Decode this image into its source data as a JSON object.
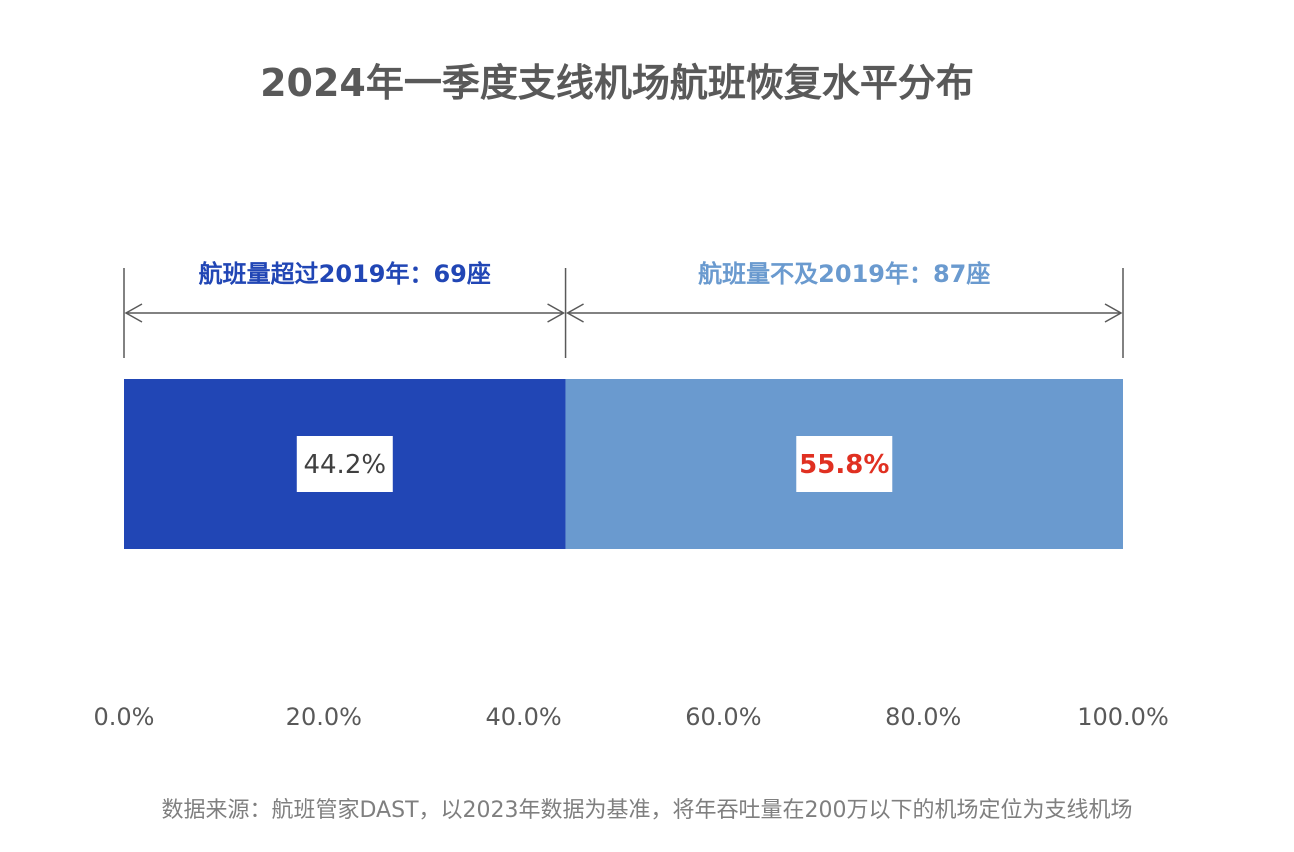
{
  "title": "2024年一季度支线机场航班恢复水平分布",
  "colors": {
    "segment_above": "#2146b5",
    "segment_below": "#6a9acf",
    "label_above": "#2146b5",
    "label_below": "#6a9acf",
    "value_above": "#404040",
    "value_below": "#e03021",
    "axis_text": "#595959",
    "bracket": "#595959"
  },
  "chart_data": {
    "type": "bar",
    "orientation": "horizontal-stacked",
    "series": [
      {
        "label": "航班量超过2019年：69座",
        "value": 44.2,
        "value_label": "44.2%"
      },
      {
        "label": "航班量不及2019年：87座",
        "value": 55.8,
        "value_label": "55.8%"
      }
    ],
    "xlim": [
      0,
      100
    ],
    "x_ticks": [
      "0.0%",
      "20.0%",
      "40.0%",
      "60.0%",
      "80.0%",
      "100.0%"
    ],
    "grid": false
  },
  "source": "数据来源：航班管家DAST，以2023年数据为基准，将年吞吐量在200万以下的机场定位为支线机场"
}
